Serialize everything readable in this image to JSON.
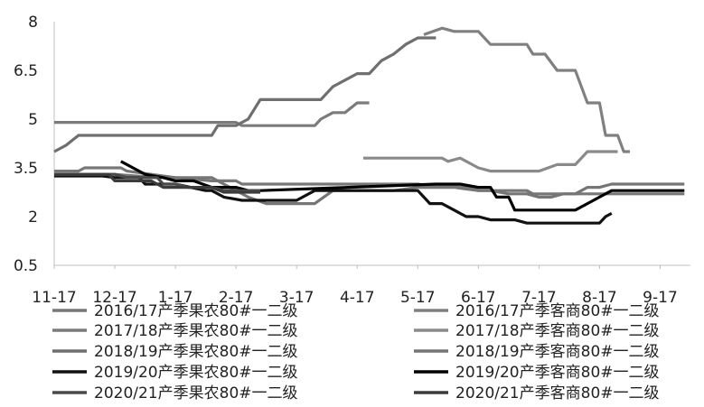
{
  "chart_data": {
    "type": "line",
    "title": "",
    "xlabel": "",
    "ylabel": "",
    "ylim": [
      0.5,
      8
    ],
    "y_ticks": [
      "0.5",
      "2",
      "3.5",
      "5",
      "6.5",
      "8"
    ],
    "x_ticks": [
      "11-17",
      "12-17",
      "1-17",
      "2-17",
      "3-17",
      "4-17",
      "5-17",
      "6-17",
      "7-17",
      "8-17",
      "9-17"
    ],
    "x_unit": "months since 11-17",
    "grid": false,
    "legend_position": "bottom",
    "series": [
      {
        "name": "2016/17产季果农80#一二级",
        "color": "#777777",
        "points": [
          [
            0.0,
            3.4
          ],
          [
            0.4,
            3.4
          ],
          [
            0.5,
            3.5
          ],
          [
            1.1,
            3.5
          ],
          [
            1.2,
            3.4
          ],
          [
            1.6,
            3.3
          ],
          [
            2.0,
            3.2
          ],
          [
            2.6,
            3.1
          ],
          [
            3.0,
            3.1
          ],
          [
            3.1,
            3.0
          ],
          [
            3.4,
            3.0
          ],
          [
            4.3,
            3.0
          ],
          [
            4.4,
            3.0
          ],
          [
            5.8,
            3.0
          ],
          [
            6.0,
            3.0
          ],
          [
            6.2,
            2.95
          ],
          [
            6.9,
            2.9
          ],
          [
            7.0,
            2.8
          ],
          [
            7.2,
            2.8
          ],
          [
            7.8,
            2.8
          ],
          [
            7.9,
            2.7
          ],
          [
            8.4,
            2.7
          ],
          [
            9.5,
            2.7
          ],
          [
            10.0,
            2.7
          ],
          [
            10.4,
            2.7
          ]
        ]
      },
      {
        "name": "2016/17产季客商80#一二级",
        "color": "#808080",
        "points": [
          [
            6.1,
            7.6
          ],
          [
            6.4,
            7.8
          ],
          [
            6.6,
            7.7
          ],
          [
            7.0,
            7.7
          ],
          [
            7.2,
            7.3
          ],
          [
            7.8,
            7.3
          ],
          [
            7.9,
            7.0
          ],
          [
            8.1,
            7.0
          ],
          [
            8.3,
            6.5
          ],
          [
            8.6,
            6.5
          ],
          [
            8.8,
            5.5
          ],
          [
            9.0,
            5.5
          ],
          [
            9.1,
            4.5
          ],
          [
            9.3,
            4.5
          ],
          [
            9.4,
            4.0
          ],
          [
            9.5,
            4.0
          ]
        ]
      },
      {
        "name": "2017/18产季果农80#一二级",
        "color": "#7b7b7b",
        "points": [
          [
            0.0,
            4.9
          ],
          [
            0.5,
            4.9
          ],
          [
            2.0,
            4.9
          ],
          [
            2.6,
            4.9
          ],
          [
            2.7,
            4.9
          ],
          [
            3.0,
            4.9
          ],
          [
            3.1,
            4.8
          ],
          [
            4.3,
            4.8
          ],
          [
            4.4,
            5.0
          ],
          [
            4.6,
            5.2
          ],
          [
            4.8,
            5.2
          ],
          [
            5.0,
            5.5
          ],
          [
            5.2,
            5.5
          ]
        ]
      },
      {
        "name": "2017/18产季客商80#一二级",
        "color": "#8a8a8a",
        "points": [
          [
            5.1,
            3.8
          ],
          [
            6.1,
            3.8
          ],
          [
            6.4,
            3.8
          ],
          [
            6.5,
            3.7
          ],
          [
            6.7,
            3.8
          ],
          [
            6.9,
            3.6
          ],
          [
            7.0,
            3.5
          ],
          [
            7.2,
            3.4
          ],
          [
            7.8,
            3.4
          ],
          [
            8.0,
            3.4
          ],
          [
            8.3,
            3.6
          ],
          [
            8.6,
            3.6
          ],
          [
            8.7,
            3.8
          ],
          [
            8.8,
            4.0
          ],
          [
            9.3,
            4.0
          ]
        ]
      },
      {
        "name": "2018/19产季果农80#一二级",
        "color": "#6f6f6f",
        "points": [
          [
            0.0,
            4.0
          ],
          [
            0.2,
            4.2
          ],
          [
            0.4,
            4.5
          ],
          [
            1.0,
            4.5
          ],
          [
            2.0,
            4.5
          ],
          [
            2.6,
            4.5
          ],
          [
            2.7,
            4.8
          ],
          [
            3.0,
            4.8
          ],
          [
            3.2,
            5.0
          ],
          [
            3.4,
            5.6
          ],
          [
            4.0,
            5.6
          ],
          [
            4.4,
            5.6
          ],
          [
            4.5,
            5.8
          ],
          [
            4.6,
            6.0
          ],
          [
            4.8,
            6.2
          ],
          [
            5.0,
            6.4
          ],
          [
            5.2,
            6.4
          ],
          [
            5.4,
            6.8
          ],
          [
            5.6,
            7.0
          ],
          [
            5.8,
            7.3
          ],
          [
            6.0,
            7.5
          ],
          [
            6.3,
            7.5
          ]
        ]
      },
      {
        "name": "2018/19产季客商80#一二级",
        "color": "#757575",
        "points": [
          [
            0.0,
            3.3
          ],
          [
            1.0,
            3.3
          ],
          [
            1.7,
            3.2
          ],
          [
            2.0,
            3.2
          ],
          [
            2.6,
            3.2
          ],
          [
            2.8,
            3.0
          ],
          [
            3.2,
            2.6
          ],
          [
            3.5,
            2.4
          ],
          [
            4.0,
            2.4
          ],
          [
            4.3,
            2.4
          ],
          [
            4.6,
            2.8
          ],
          [
            5.0,
            2.8
          ],
          [
            5.6,
            2.8
          ],
          [
            5.8,
            2.85
          ],
          [
            6.0,
            2.9
          ],
          [
            6.2,
            2.9
          ],
          [
            6.4,
            2.9
          ],
          [
            6.6,
            2.9
          ],
          [
            7.0,
            2.8
          ],
          [
            7.2,
            2.8
          ],
          [
            7.5,
            2.7
          ],
          [
            7.8,
            2.7
          ],
          [
            8.0,
            2.6
          ],
          [
            8.2,
            2.6
          ],
          [
            8.4,
            2.7
          ],
          [
            8.6,
            2.7
          ],
          [
            8.8,
            2.9
          ],
          [
            9.0,
            2.9
          ],
          [
            9.2,
            3.0
          ],
          [
            9.8,
            3.0
          ],
          [
            10.4,
            3.0
          ]
        ]
      },
      {
        "name": "2019/20产季果农80#一二级",
        "color": "#111111",
        "points": [
          [
            0.0,
            3.25
          ],
          [
            0.8,
            3.25
          ],
          [
            1.0,
            3.2
          ],
          [
            1.4,
            3.2
          ],
          [
            1.5,
            3.0
          ],
          [
            2.0,
            3.0
          ],
          [
            2.5,
            2.8
          ],
          [
            2.6,
            2.8
          ],
          [
            2.8,
            2.6
          ],
          [
            3.1,
            2.5
          ],
          [
            4.0,
            2.5
          ],
          [
            4.3,
            2.8
          ],
          [
            4.5,
            2.8
          ],
          [
            5.0,
            2.8
          ],
          [
            6.0,
            2.8
          ],
          [
            6.2,
            2.4
          ],
          [
            6.4,
            2.4
          ],
          [
            6.6,
            2.2
          ],
          [
            6.8,
            2.0
          ],
          [
            7.0,
            2.0
          ],
          [
            7.2,
            1.9
          ],
          [
            7.6,
            1.9
          ],
          [
            7.8,
            1.8
          ],
          [
            8.0,
            1.8
          ],
          [
            8.6,
            1.8
          ],
          [
            8.8,
            1.8
          ],
          [
            9.0,
            1.8
          ],
          [
            9.1,
            2.0
          ],
          [
            9.2,
            2.1
          ]
        ]
      },
      {
        "name": "2019/20产季客商80#一二级",
        "color": "#000000",
        "points": [
          [
            1.1,
            3.7
          ],
          [
            1.3,
            3.5
          ],
          [
            1.5,
            3.3
          ],
          [
            1.8,
            3.2
          ],
          [
            2.0,
            3.1
          ],
          [
            2.3,
            3.1
          ],
          [
            2.6,
            2.9
          ],
          [
            3.0,
            2.9
          ],
          [
            3.2,
            2.8
          ],
          [
            3.4,
            2.8
          ],
          [
            6.3,
            3.0
          ],
          [
            6.7,
            3.0
          ],
          [
            7.0,
            2.9
          ],
          [
            7.2,
            2.9
          ],
          [
            7.3,
            2.6
          ],
          [
            7.5,
            2.6
          ],
          [
            7.6,
            2.2
          ],
          [
            8.0,
            2.2
          ],
          [
            8.6,
            2.2
          ],
          [
            8.8,
            2.4
          ],
          [
            9.0,
            2.6
          ],
          [
            9.2,
            2.8
          ],
          [
            9.6,
            2.8
          ],
          [
            10.4,
            2.8
          ]
        ]
      },
      {
        "name": "2020/21产季果农80#一二级",
        "color": "#4a4a4a",
        "points": [
          [
            0.0,
            3.3
          ],
          [
            1.0,
            3.3
          ],
          [
            1.2,
            3.2
          ],
          [
            1.7,
            3.2
          ],
          [
            1.8,
            3.0
          ],
          [
            2.0,
            3.0
          ],
          [
            2.2,
            2.9
          ],
          [
            2.6,
            2.9
          ],
          [
            2.8,
            2.8
          ],
          [
            3.4,
            2.8
          ]
        ]
      },
      {
        "name": "2020/21产季客商80#一二级",
        "color": "#3c3c3c",
        "points": [
          [
            0.0,
            3.3
          ],
          [
            0.6,
            3.3
          ],
          [
            0.9,
            3.3
          ],
          [
            1.0,
            3.1
          ],
          [
            1.2,
            3.1
          ],
          [
            1.6,
            3.1
          ],
          [
            1.8,
            2.9
          ],
          [
            2.0,
            2.9
          ],
          [
            2.6,
            2.9
          ],
          [
            2.8,
            2.75
          ],
          [
            3.0,
            2.75
          ],
          [
            3.2,
            2.75
          ],
          [
            3.4,
            2.75
          ]
        ]
      }
    ]
  }
}
